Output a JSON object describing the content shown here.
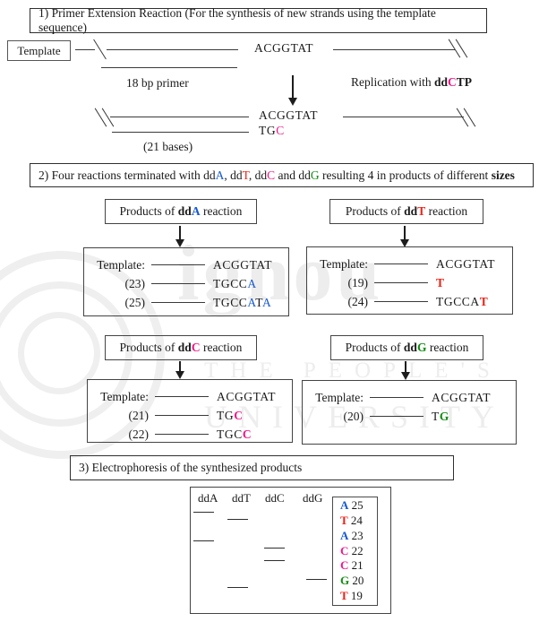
{
  "colors": {
    "A": "#1558d0",
    "T": "#ee2218",
    "C": "#f01687",
    "G": "#108c10"
  },
  "watermark": {
    "brand": "ignou",
    "line1": "THE PEOPLE'S",
    "line2": "UNIVERSITY"
  },
  "section1": {
    "title": "1) Primer Extension Reaction (For the synthesis of new strands using the template sequence)",
    "template_label": "Template",
    "top_strand_seq": "ACGGTAT",
    "primer_label": "18 bp primer",
    "replication_label": [
      {
        "t": "Replication with "
      },
      {
        "t": "dd",
        "b": true
      },
      {
        "t": "C",
        "b": true,
        "c": "C"
      },
      {
        "t": "TP",
        "b": true
      }
    ],
    "product_strand_seq": "ACGGTAT",
    "product_primer_seq": [
      {
        "t": "TG"
      },
      {
        "t": "C",
        "c": "C"
      }
    ],
    "bases_label": "(21 bases)"
  },
  "section2": {
    "title": [
      {
        "t": "2) Four reactions terminated with dd"
      },
      {
        "t": "A",
        "c": "A"
      },
      {
        "t": ", dd"
      },
      {
        "t": "T",
        "c": "T"
      },
      {
        "t": ", dd"
      },
      {
        "t": "C",
        "c": "C"
      },
      {
        "t": " and dd"
      },
      {
        "t": "G",
        "c": "G"
      },
      {
        "t": " resulting 4 in products of different "
      },
      {
        "t": "sizes",
        "b": true
      }
    ],
    "panels": [
      {
        "id": "ddA",
        "header": [
          {
            "t": "Products of "
          },
          {
            "t": "dd",
            "b": true
          },
          {
            "t": "A",
            "b": true,
            "c": "A"
          },
          {
            "t": " reaction"
          }
        ],
        "rows": [
          {
            "label": "Template:",
            "seq": [
              {
                "t": "ACGGTAT"
              }
            ]
          },
          {
            "label": "(23)",
            "seq": [
              {
                "t": "TGCC"
              },
              {
                "t": "A",
                "c": "A"
              }
            ]
          },
          {
            "label": "(25)",
            "seq": [
              {
                "t": "TGCC"
              },
              {
                "t": "A",
                "c": "A"
              },
              {
                "t": "T"
              },
              {
                "t": "A",
                "c": "A"
              }
            ]
          }
        ]
      },
      {
        "id": "ddT",
        "header": [
          {
            "t": "Products of "
          },
          {
            "t": "dd",
            "b": true
          },
          {
            "t": "T",
            "b": true,
            "c": "T"
          },
          {
            "t": " reaction"
          }
        ],
        "rows": [
          {
            "label": "Template:",
            "seq": [
              {
                "t": "ACGGTAT"
              }
            ]
          },
          {
            "label": "(19)",
            "seq": [
              {
                "t": "T",
                "c": "T",
                "b": true
              }
            ]
          },
          {
            "label": "(24)",
            "seq": [
              {
                "t": "TGCCA"
              },
              {
                "t": "T",
                "c": "T",
                "b": true
              }
            ]
          }
        ]
      },
      {
        "id": "ddC",
        "header": [
          {
            "t": "Products of "
          },
          {
            "t": "dd",
            "b": true
          },
          {
            "t": "C",
            "b": true,
            "c": "C"
          },
          {
            "t": " reaction"
          }
        ],
        "rows": [
          {
            "label": "Template:",
            "seq": [
              {
                "t": "ACGGTAT"
              }
            ]
          },
          {
            "label": "(21)",
            "seq": [
              {
                "t": "TG"
              },
              {
                "t": "C",
                "c": "C",
                "b": true
              }
            ]
          },
          {
            "label": "(22)",
            "seq": [
              {
                "t": "TGC"
              },
              {
                "t": "C",
                "c": "C",
                "b": true
              }
            ]
          }
        ]
      },
      {
        "id": "ddG",
        "header": [
          {
            "t": "Products of "
          },
          {
            "t": "dd",
            "b": true
          },
          {
            "t": "G",
            "b": true,
            "c": "G"
          },
          {
            "t": " reaction"
          }
        ],
        "rows": [
          {
            "label": "Template:",
            "seq": [
              {
                "t": "ACGGTAT"
              }
            ]
          },
          {
            "label": "(20)",
            "seq": [
              {
                "t": "T"
              },
              {
                "t": "G",
                "c": "G",
                "b": true
              }
            ]
          }
        ]
      }
    ]
  },
  "section3": {
    "title": "3) Electrophoresis of the synthesized products",
    "gel": {
      "lanes": [
        "ddA",
        "ddT",
        "ddC",
        "ddG"
      ],
      "bands": [
        {
          "lane": "ddA",
          "size": 25
        },
        {
          "lane": "ddT",
          "size": 24
        },
        {
          "lane": "ddA",
          "size": 23
        },
        {
          "lane": "ddC",
          "size": 22
        },
        {
          "lane": "ddC",
          "size": 21
        },
        {
          "lane": "ddG",
          "size": 20
        },
        {
          "lane": "ddT",
          "size": 19
        }
      ],
      "legend": [
        {
          "base": "A",
          "size": "25"
        },
        {
          "base": "T",
          "size": "24"
        },
        {
          "base": "A",
          "size": "23"
        },
        {
          "base": "C",
          "size": "22"
        },
        {
          "base": "C",
          "size": "21"
        },
        {
          "base": "G",
          "size": "20"
        },
        {
          "base": "T",
          "size": "19"
        }
      ]
    }
  }
}
